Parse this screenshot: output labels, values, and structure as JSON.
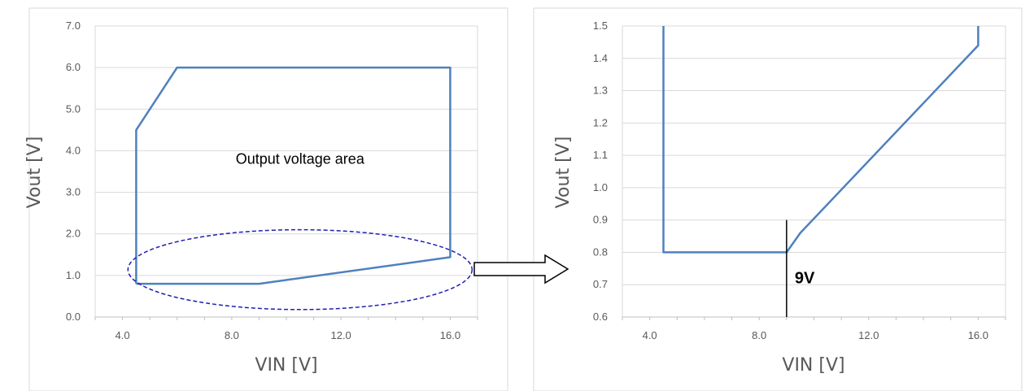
{
  "chart_data": [
    {
      "type": "line",
      "title": "",
      "xlabel": "VIN [V]",
      "ylabel": "Vout [V]",
      "xlim": [
        3.0,
        17.0
      ],
      "ylim": [
        0.0,
        7.0
      ],
      "x_ticks": [
        4.0,
        8.0,
        12.0,
        16.0
      ],
      "x_tick_labels": [
        "4.0",
        "8.0",
        "12.0",
        "16.0"
      ],
      "y_ticks": [
        0.0,
        1.0,
        2.0,
        3.0,
        4.0,
        5.0,
        6.0,
        7.0
      ],
      "y_tick_labels": [
        "0.0",
        "1.0",
        "2.0",
        "3.0",
        "4.0",
        "5.0",
        "6.0",
        "7.0"
      ],
      "grid": true,
      "series": [
        {
          "color": "#4F81BD",
          "x": [
            4.5,
            4.5,
            6.0,
            16.0,
            16.0,
            9.0,
            4.5
          ],
          "y": [
            0.8,
            4.5,
            6.0,
            6.0,
            1.44,
            0.8,
            0.8
          ]
        }
      ],
      "annotations": [
        {
          "text": "Output voltage area",
          "x": 10.5,
          "y": 3.8
        }
      ],
      "ellipse": {
        "cx": 10.5,
        "cy": 1.14,
        "rx": 6.3,
        "ry": 0.96,
        "color": "#1F1FB4",
        "style": "dashed"
      }
    },
    {
      "type": "line",
      "title": "",
      "xlabel": "VIN [V]",
      "ylabel": "Vout [V]",
      "xlim": [
        3.0,
        17.0
      ],
      "ylim": [
        0.6,
        1.5
      ],
      "x_ticks": [
        4.0,
        8.0,
        12.0,
        16.0
      ],
      "x_tick_labels": [
        "4.0",
        "8.0",
        "12.0",
        "16.0"
      ],
      "y_ticks": [
        0.6,
        0.7,
        0.8,
        0.9,
        1.0,
        1.1,
        1.2,
        1.3,
        1.4,
        1.5
      ],
      "y_tick_labels": [
        "0.6",
        "0.7",
        "0.8",
        "0.9",
        "1.0",
        "1.1",
        "1.2",
        "1.3",
        "1.4",
        "1.5"
      ],
      "grid": true,
      "series": [
        {
          "color": "#4F81BD",
          "x": [
            4.5,
            4.5,
            9.0,
            9.5,
            16.0,
            16.0
          ],
          "y": [
            1.5,
            0.8,
            0.8,
            0.86,
            1.44,
            1.5
          ]
        }
      ],
      "annotations": [
        {
          "text": "9V",
          "x": 9.25,
          "y": 0.72
        }
      ],
      "marker_line": {
        "x": 9.0,
        "y_from": 0.6,
        "y_to": 0.9,
        "color": "#000000"
      }
    }
  ],
  "arrow": {
    "color": "#000000"
  }
}
